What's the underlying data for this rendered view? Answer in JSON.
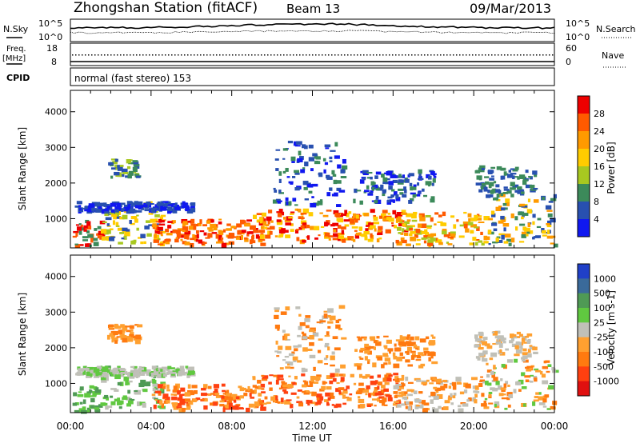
{
  "header": {
    "station": "Zhongshan Station (fitACF)",
    "beam": "Beam 13",
    "date": "09/Mar/2013"
  },
  "panels": {
    "nsky": {
      "label": "N.Sky",
      "ticks_left": [
        "10^5",
        "10^0"
      ],
      "right_label": "N.Search",
      "ticks_right": [
        "10^5",
        "10^0"
      ]
    },
    "freq": {
      "label_top": "Freq.",
      "label_bottom": "[MHz]",
      "ticks_left": [
        "18",
        "8"
      ],
      "right_label": "Nave",
      "ticks_right": [
        "60",
        "0"
      ]
    },
    "cpid": {
      "label": "CPID",
      "text": "normal (fast stereo) 153"
    }
  },
  "chart_data": [
    {
      "type": "heatmap",
      "name": "power",
      "xlabel": "Time UT",
      "ylabel": "Slant Range [km]",
      "x_ticks": [
        "00:00",
        "04:00",
        "08:00",
        "12:00",
        "16:00",
        "20:00",
        "00:00"
      ],
      "xlim_hours": [
        0,
        24
      ],
      "y_ticks": [
        1000,
        2000,
        3000,
        4000
      ],
      "ylim": [
        180,
        4600
      ],
      "colorbar": {
        "label": "Power [dB]",
        "ticks": [
          "28",
          "24",
          "20",
          "16",
          "12",
          "8",
          "4"
        ],
        "colors": [
          "#ee0000",
          "#ff5a00",
          "#ff9a00",
          "#ffcc00",
          "#a8c820",
          "#3c8a5a",
          "#2850b0",
          "#1018f0"
        ]
      }
    },
    {
      "type": "heatmap",
      "name": "velocity",
      "xlabel": "Time UT",
      "ylabel": "Slant Range [km]",
      "x_ticks": [
        "00:00",
        "04:00",
        "08:00",
        "12:00",
        "16:00",
        "20:00",
        "00:00"
      ],
      "xlim_hours": [
        0,
        24
      ],
      "y_ticks": [
        1000,
        2000,
        3000,
        4000
      ],
      "ylim": [
        180,
        4600
      ],
      "colorbar": {
        "label": "Velocity [m s-1]",
        "ticks": [
          "1000",
          "500",
          "100",
          "25",
          "-25",
          "-100",
          "-500",
          "-1000"
        ],
        "colors": [
          "#2040c8",
          "#3a6a9a",
          "#4f9a55",
          "#60c840",
          "#c0c0b8",
          "#ffa030",
          "#ff7a10",
          "#ff4010",
          "#e01010"
        ]
      }
    }
  ]
}
